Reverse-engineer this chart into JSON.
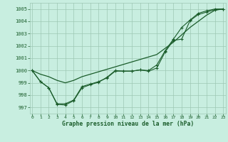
{
  "bg_color": "#c8eee0",
  "grid_color": "#9dc8b4",
  "line_color": "#1a5c2a",
  "xlabel": "Graphe pression niveau de la mer (hPa)",
  "ylim": [
    996.5,
    1005.5
  ],
  "xlim": [
    -0.3,
    23.3
  ],
  "yticks": [
    997,
    998,
    999,
    1000,
    1001,
    1002,
    1003,
    1004,
    1005
  ],
  "xticks": [
    0,
    1,
    2,
    3,
    4,
    5,
    6,
    7,
    8,
    9,
    10,
    11,
    12,
    13,
    14,
    15,
    16,
    17,
    18,
    19,
    20,
    21,
    22,
    23
  ],
  "series_smooth": [
    1000.0,
    999.7,
    999.5,
    999.2,
    999.0,
    999.2,
    999.5,
    999.7,
    999.9,
    1000.1,
    1000.3,
    1000.5,
    1000.7,
    1000.9,
    1001.1,
    1001.3,
    1001.8,
    1002.3,
    1002.9,
    1003.5,
    1004.0,
    1004.5,
    1004.9,
    1005.0
  ],
  "series_markers1": [
    1000.0,
    999.1,
    998.6,
    997.3,
    997.3,
    997.6,
    998.7,
    998.9,
    999.1,
    999.4,
    999.95,
    999.95,
    999.95,
    1000.05,
    999.95,
    1000.2,
    1001.5,
    1002.45,
    1002.55,
    1004.05,
    1004.55,
    1004.75,
    1004.95,
    1005.0
  ],
  "series_markers2": [
    1000.0,
    999.1,
    998.6,
    997.25,
    997.2,
    997.55,
    998.6,
    998.85,
    999.05,
    999.45,
    1000.0,
    999.95,
    999.95,
    1000.05,
    1000.0,
    1000.45,
    1001.6,
    1002.55,
    1003.5,
    1004.1,
    1004.65,
    1004.85,
    1005.0,
    1005.0
  ]
}
